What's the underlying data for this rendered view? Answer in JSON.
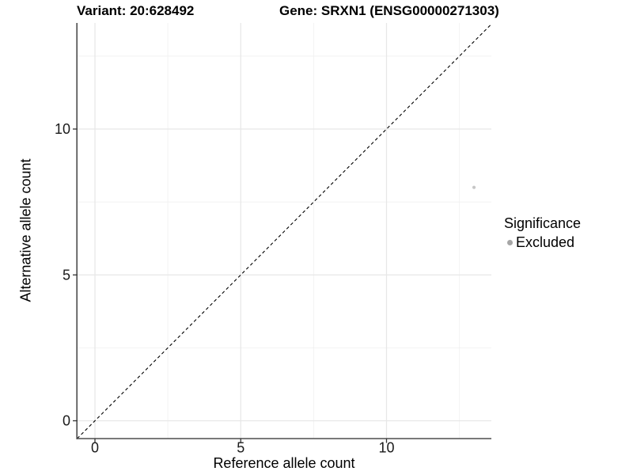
{
  "chart_data": {
    "type": "scatter",
    "titles": {
      "variant": "Variant: 20:628492",
      "gene": "Gene: SRXN1 (ENSG00000271303)"
    },
    "xlabel": "Reference allele count",
    "ylabel": "Alternative allele count",
    "x_ticks": [
      0,
      5,
      10
    ],
    "y_ticks": [
      0,
      5,
      10
    ],
    "minor_ticks": [
      2.5,
      7.5,
      12.5
    ],
    "xlim": [
      -0.61,
      13.61
    ],
    "ylim": [
      -0.61,
      13.66
    ],
    "grid": true,
    "points": [
      {
        "x": 13,
        "y": 8,
        "significance": "Excluded"
      }
    ],
    "reference_line": {
      "type": "identity",
      "equation": "y = x",
      "style": "dashed"
    },
    "legend": {
      "title": "Significance",
      "position": "right",
      "items": [
        {
          "label": "Excluded",
          "color": "#a6a6a6"
        }
      ]
    },
    "colors": {
      "background": "#ffffff",
      "point": "#c6c6c6",
      "legend_point": "#a6a6a6",
      "axis_line": "#4d4d4d",
      "tick_mark": "#333333",
      "tick_label": "#1a1a1a",
      "grid_major": "#e7e7e7",
      "grid_minor": "#f2f2f2",
      "identity_line": "#000000"
    }
  }
}
